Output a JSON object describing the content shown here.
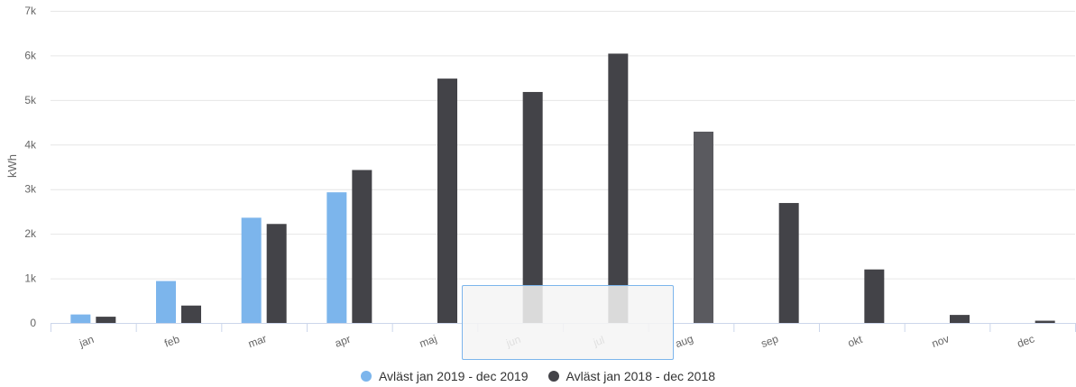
{
  "chart_data": {
    "type": "bar",
    "title": "",
    "xlabel": "",
    "ylabel": "kWh",
    "ylim": [
      0,
      7000
    ],
    "yticks": [
      "0",
      "1k",
      "2k",
      "3k",
      "4k",
      "5k",
      "6k",
      "7k"
    ],
    "ytick_values": [
      0,
      1000,
      2000,
      3000,
      4000,
      5000,
      6000,
      7000
    ],
    "categories": [
      "jan",
      "feb",
      "mar",
      "apr",
      "maj",
      "jun",
      "jul",
      "aug",
      "sep",
      "okt",
      "nov",
      "dec"
    ],
    "series": [
      {
        "name": "Avläst jan 2019 - dec 2019",
        "color": "#7cb5ec",
        "values": [
          190,
          940,
          2360,
          2930,
          null,
          null,
          null,
          null,
          null,
          null,
          null,
          null
        ]
      },
      {
        "name": "Avläst jan 2018 - dec 2018",
        "color": "#434348",
        "values": [
          140,
          390,
          2220,
          3430,
          5480,
          5180,
          6040,
          4290,
          2690,
          1200,
          180,
          50
        ]
      }
    ],
    "highlight_color": "#5a5a5f",
    "highlighted_category": "aug",
    "grid": true,
    "legend_position": "bottom-center"
  }
}
